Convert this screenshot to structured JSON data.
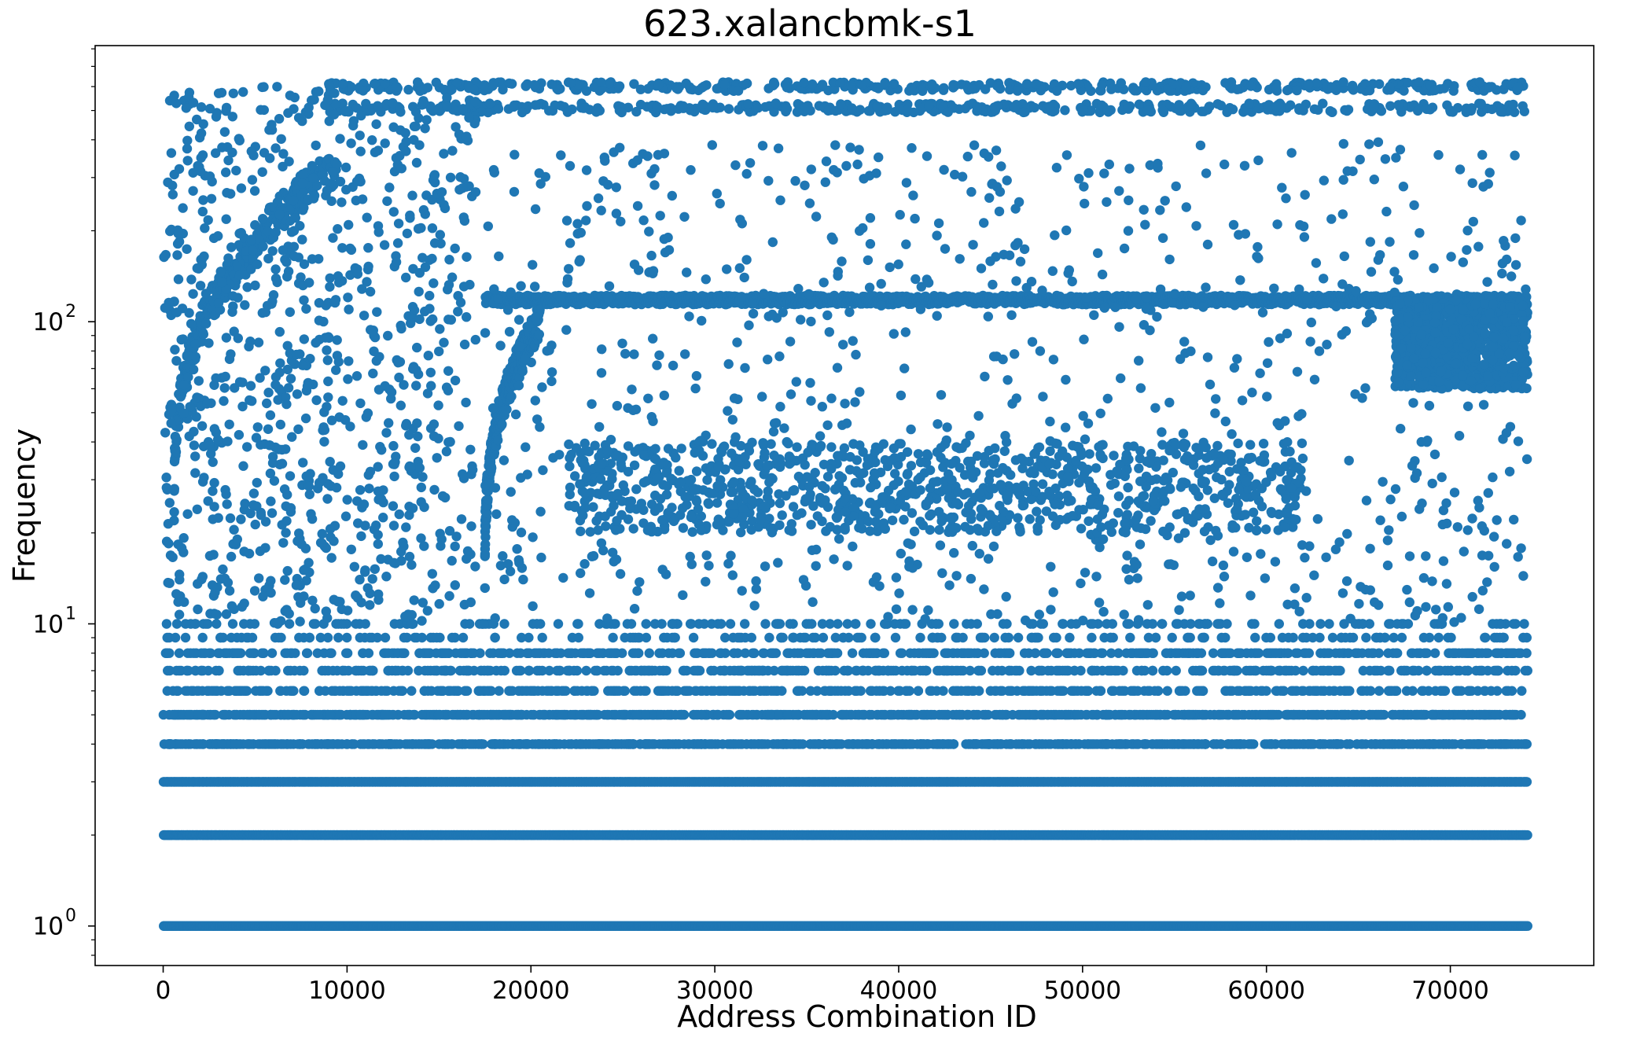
{
  "chart_data": {
    "type": "scatter",
    "title": "623.xalancbmk-s1",
    "xlabel": "Address Combination ID",
    "ylabel": "Frequency",
    "x_scale": "linear",
    "y_scale": "log",
    "xlim": [
      -3700,
      77800
    ],
    "ylim": [
      0.74,
      820
    ],
    "x_ticks": [
      0,
      10000,
      20000,
      30000,
      40000,
      50000,
      60000,
      70000
    ],
    "x_tick_labels": [
      "0",
      "10000",
      "20000",
      "30000",
      "40000",
      "50000",
      "60000",
      "70000"
    ],
    "y_ticks": [
      1,
      10,
      100
    ],
    "y_tick_labels": [
      {
        "base": "10",
        "exp": "0"
      },
      {
        "base": "10",
        "exp": "1"
      },
      {
        "base": "10",
        "exp": "2"
      }
    ],
    "grid": false,
    "legend": "none",
    "marker_color": "#1f77b4",
    "series": [
      {
        "n_points": 74200,
        "x_range": [
          0,
          74200
        ],
        "y_range": [
          1,
          650
        ],
        "frequency_bands": [
          {
            "y": 1,
            "x_range": [
              0,
              74200
            ],
            "density": "continuous"
          },
          {
            "y": 2,
            "x_range": [
              0,
              74200
            ],
            "density": "continuous"
          },
          {
            "y": 3,
            "x_range": [
              0,
              74200
            ],
            "density": "continuous"
          },
          {
            "y": 4,
            "x_range": [
              0,
              74200
            ],
            "density": "dense"
          },
          {
            "y": 5,
            "x_range": [
              0,
              74200
            ],
            "density": "dense"
          },
          {
            "y": 6,
            "x_range": [
              0,
              74200
            ],
            "density": "medium"
          },
          {
            "y": 7,
            "x_range": [
              0,
              74200
            ],
            "density": "medium"
          },
          {
            "y": 8,
            "x_range": [
              0,
              74200
            ],
            "density": "medium"
          },
          {
            "y": 9,
            "x_range": [
              0,
              74200
            ],
            "density": "sparse"
          },
          {
            "y": 10,
            "x_range": [
              0,
              74200
            ],
            "density": "sparse"
          },
          {
            "y": 118,
            "x_range": [
              17500,
              74200
            ],
            "density": "continuous"
          },
          {
            "y": 510,
            "x_range": [
              9000,
              74200
            ],
            "density": "medium"
          },
          {
            "y": 600,
            "x_range": [
              9000,
              74200
            ],
            "density": "medium"
          }
        ],
        "rising_curves": [
          {
            "x_from": 600,
            "x_to": 9500,
            "y_from": 25,
            "y_to": 330
          },
          {
            "x_from": 17500,
            "x_to": 20500,
            "y_from": 15,
            "y_to": 100
          }
        ],
        "scatter_regions": [
          {
            "x_range": [
              0,
              17000
            ],
            "y_range": [
              10,
              600
            ],
            "density": "dense"
          },
          {
            "x_range": [
              17500,
              74200
            ],
            "y_range": [
              10,
              400
            ],
            "density": "dense"
          },
          {
            "x_range": [
              22000,
              62000
            ],
            "y_range": [
              20,
              40
            ],
            "density": "dense"
          },
          {
            "x_range": [
              67000,
              74200
            ],
            "y_range": [
              60,
              118
            ],
            "density": "dense"
          }
        ]
      }
    ]
  }
}
